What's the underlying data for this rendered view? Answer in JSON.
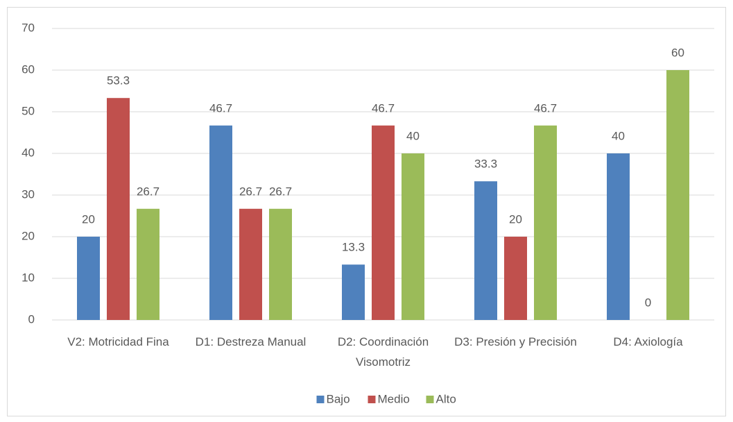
{
  "chart_data": {
    "type": "bar",
    "categories": [
      "V2: Motricidad Fina",
      "D1: Destreza Manual",
      "D2: Coordinación Visomotriz",
      "D3: Presión y Precisión",
      "D4: Axiología"
    ],
    "series": [
      {
        "name": "Bajo",
        "color": "#4f81bd",
        "values": [
          20,
          46.7,
          13.3,
          33.3,
          40
        ]
      },
      {
        "name": "Medio",
        "color": "#c0504d",
        "values": [
          53.3,
          26.7,
          46.7,
          20,
          0
        ]
      },
      {
        "name": "Alto",
        "color": "#9bbb59",
        "values": [
          26.7,
          26.7,
          40,
          46.7,
          60
        ]
      }
    ],
    "ylim": [
      0,
      70
    ],
    "yticks": [
      0,
      10,
      20,
      30,
      40,
      50,
      60,
      70
    ],
    "grid": true,
    "legend": "bottom"
  }
}
